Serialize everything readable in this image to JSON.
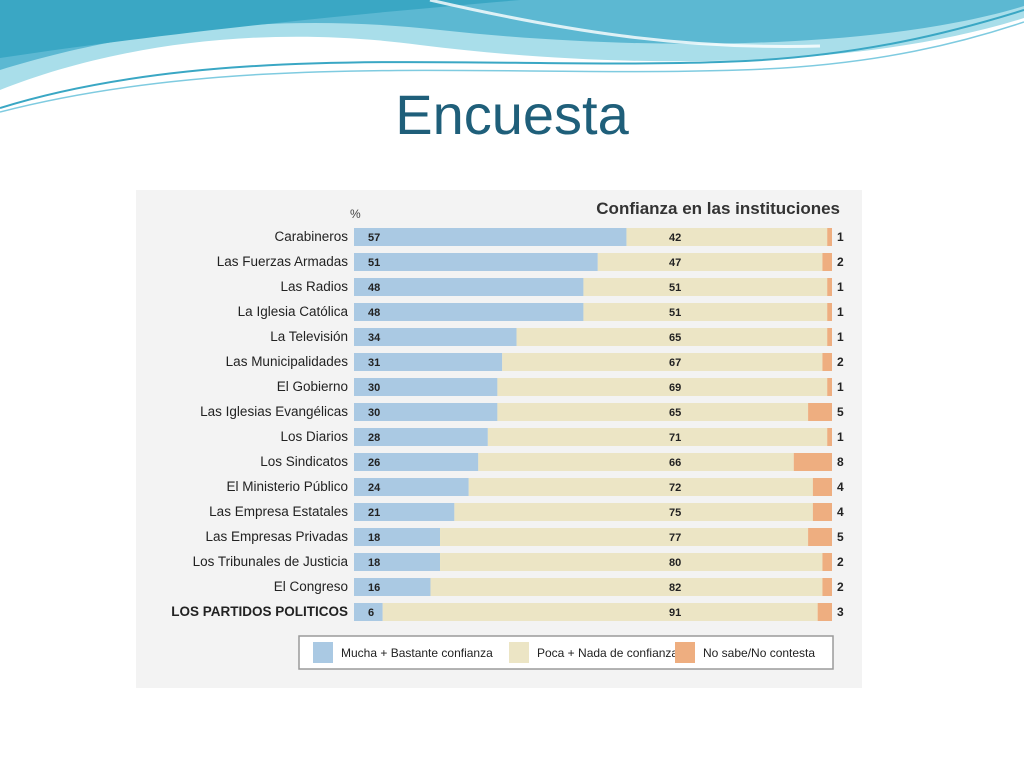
{
  "slide": {
    "title": "Encuesta"
  },
  "colors": {
    "accent": "#1f5f7a",
    "wave_dark": "#3aa7c4",
    "wave_light": "#a9deea",
    "mucha": "#aac9e3",
    "poca": "#ece5c5",
    "nosabe": "#eeae80",
    "panel_bg": "#f3f3f3"
  },
  "chart_data": {
    "type": "bar",
    "orientation": "horizontal",
    "stacked": true,
    "title": "Confianza en las instituciones",
    "unit": "%",
    "categories": [
      "Carabineros",
      "Las Fuerzas Armadas",
      "Las Radios",
      "La Iglesia Católica",
      "La Televisión",
      "Las Municipalidades",
      "El Gobierno",
      "Las Iglesias Evangélicas",
      "Los Diarios",
      "Los Sindicatos",
      "El Ministerio Público",
      "Las Empresa Estatales",
      "Las Empresas Privadas",
      "Los Tribunales de Justicia",
      "El Congreso",
      "LOS PARTIDOS POLITICOS"
    ],
    "series": [
      {
        "name": "Mucha + Bastante confianza",
        "color": "#aac9e3",
        "values": [
          57,
          51,
          48,
          48,
          34,
          31,
          30,
          30,
          28,
          26,
          24,
          21,
          18,
          18,
          16,
          6
        ]
      },
      {
        "name": "Poca + Nada de confianza",
        "color": "#ece5c5",
        "values": [
          42,
          47,
          51,
          51,
          65,
          67,
          69,
          65,
          71,
          66,
          72,
          75,
          77,
          80,
          82,
          91
        ]
      },
      {
        "name": "No sabe/No contesta",
        "color": "#eeae80",
        "values": [
          1,
          2,
          1,
          1,
          1,
          2,
          1,
          5,
          1,
          8,
          4,
          4,
          5,
          2,
          2,
          3
        ]
      }
    ],
    "xlim": [
      0,
      100
    ],
    "grid": false,
    "legend": "bottom"
  }
}
